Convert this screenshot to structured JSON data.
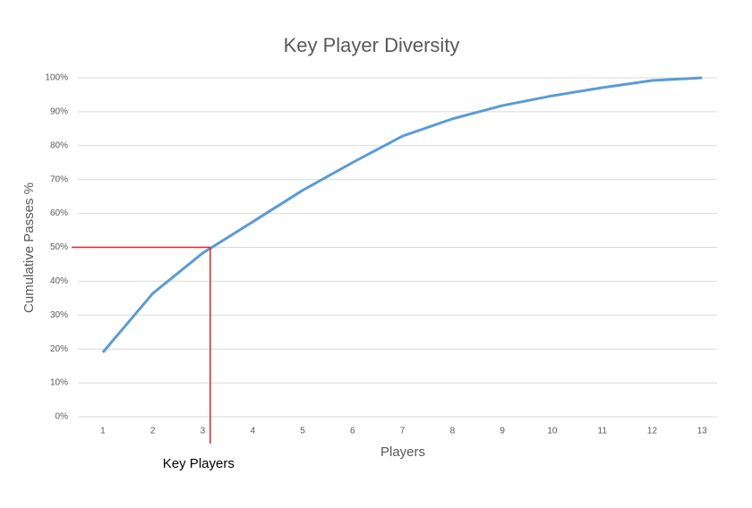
{
  "chart_data": {
    "type": "line",
    "title": "Key Player Diversity",
    "x_label": "Players",
    "y_label": "Cumulative Passes %",
    "x": [
      1,
      2,
      3,
      4,
      5,
      6,
      7,
      8,
      9,
      10,
      11,
      12,
      13
    ],
    "series": [
      {
        "name": "Cumulative Passes",
        "color": "#5b9bd5",
        "values": [
          19,
          36.4,
          48.3,
          57.5,
          66.8,
          75,
          82.8,
          87.9,
          91.8,
          94.7,
          97.1,
          99.2,
          100
        ]
      }
    ],
    "xlim": [
      0.5,
      13.3
    ],
    "xticks": [
      1,
      2,
      3,
      4,
      5,
      6,
      7,
      8,
      9,
      10,
      11,
      12,
      13
    ],
    "ylim": [
      0,
      100
    ],
    "yticks": [
      {
        "value": 0,
        "label": "0%"
      },
      {
        "value": 10,
        "label": "10%"
      },
      {
        "value": 20,
        "label": "20%"
      },
      {
        "value": 30,
        "label": "30%"
      },
      {
        "value": 40,
        "label": "40%"
      },
      {
        "value": 50,
        "label": "50%"
      },
      {
        "value": 60,
        "label": "60%"
      },
      {
        "value": 70,
        "label": "70%"
      },
      {
        "value": 80,
        "label": "80%"
      },
      {
        "value": 90,
        "label": "90%"
      },
      {
        "value": 100,
        "label": "100%"
      }
    ],
    "grid": true,
    "annotation": {
      "text": "Key Players",
      "x": 3.15,
      "y": 50,
      "color": "#d9262c"
    }
  }
}
